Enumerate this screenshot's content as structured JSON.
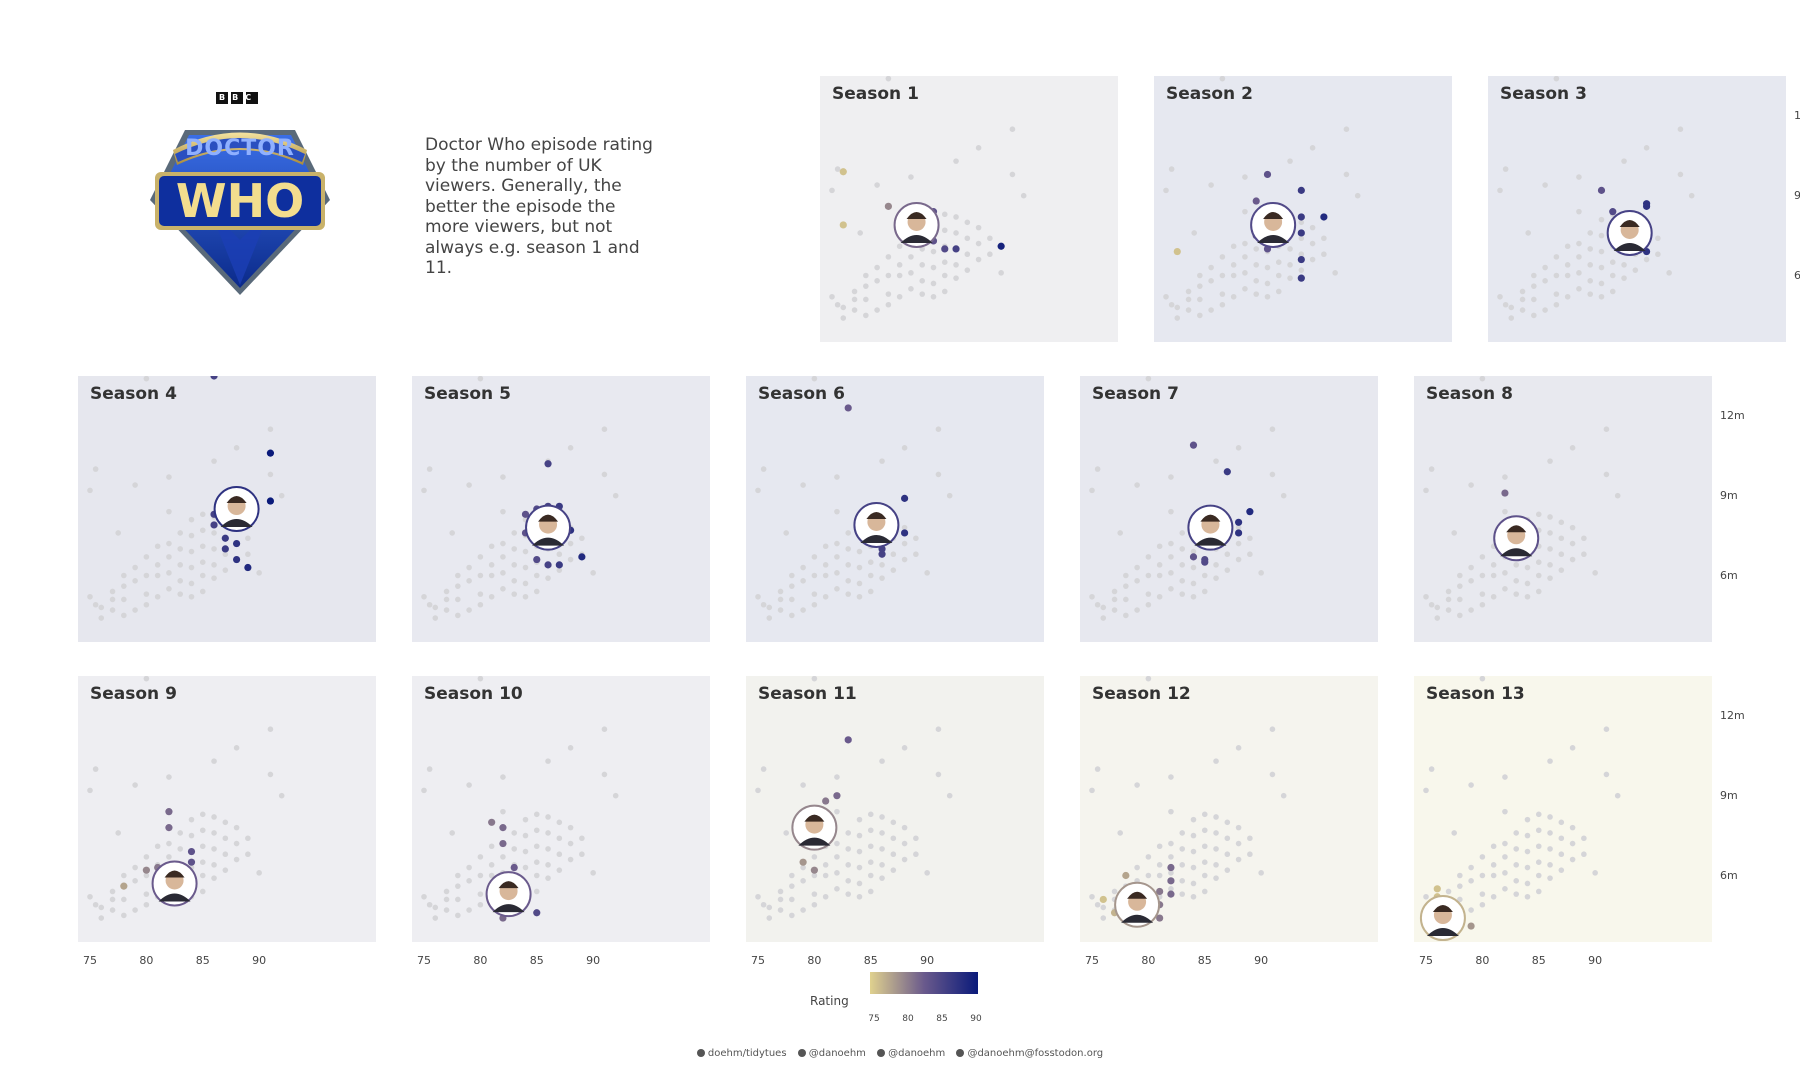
{
  "logo": {
    "bbc_text": "BBC",
    "line1": "DOCTOR",
    "line2": "WHO"
  },
  "subtitle": "Doctor Who episode rating by the number of UK viewers. Generally, the better the episode the more viewers, but not always e.g. season 1 and 11.",
  "legend": {
    "title": "Rating",
    "ticks": [
      "75",
      "80",
      "85",
      "90"
    ],
    "color_low": "#e0d18e",
    "color_mid": "#6a5a8c",
    "color_high": "#0a1a7a"
  },
  "footer": {
    "items": [
      "doehm/tidytues",
      "@danoehm",
      "@danoehm",
      "@danoehm@fosstodon.org"
    ],
    "icons": [
      "github-icon",
      "twitter-icon",
      "threads-icon",
      "mastodon-icon"
    ]
  },
  "chart_data": {
    "type": "scatter",
    "xlabel": "",
    "ylabel": "",
    "xlim": [
      74.5,
      92.5
    ],
    "ylim": [
      3.5,
      13.5
    ],
    "x_ticks": [
      "75",
      "80",
      "85",
      "90"
    ],
    "y_ticks": [
      "6m",
      "9m",
      "12m"
    ],
    "background_points": [
      [
        75,
        5.2
      ],
      [
        75.5,
        4.9
      ],
      [
        76,
        4.4
      ],
      [
        76,
        4.8
      ],
      [
        77,
        5.4
      ],
      [
        77,
        4.7
      ],
      [
        77,
        5.1
      ],
      [
        78,
        6.0
      ],
      [
        78,
        5.6
      ],
      [
        78,
        5.1
      ],
      [
        78,
        4.5
      ],
      [
        79,
        5.8
      ],
      [
        79,
        6.3
      ],
      [
        79,
        4.7
      ],
      [
        80,
        6.7
      ],
      [
        80,
        6.0
      ],
      [
        80,
        5.3
      ],
      [
        80,
        4.9
      ],
      [
        81,
        6.4
      ],
      [
        81,
        7.1
      ],
      [
        81,
        6.0
      ],
      [
        81,
        5.2
      ],
      [
        82,
        7.2
      ],
      [
        82,
        6.7
      ],
      [
        82,
        6.1
      ],
      [
        82,
        5.5
      ],
      [
        82,
        8.4
      ],
      [
        83,
        7.6
      ],
      [
        83,
        7.0
      ],
      [
        83,
        6.4
      ],
      [
        83,
        5.8
      ],
      [
        83,
        5.3
      ],
      [
        84,
        8.1
      ],
      [
        84,
        7.5
      ],
      [
        84,
        6.9
      ],
      [
        84,
        6.3
      ],
      [
        84,
        5.7
      ],
      [
        84,
        5.2
      ],
      [
        85,
        8.3
      ],
      [
        85,
        7.7
      ],
      [
        85,
        7.1
      ],
      [
        85,
        6.5
      ],
      [
        85,
        6.0
      ],
      [
        85,
        5.4
      ],
      [
        86,
        8.2
      ],
      [
        86,
        7.6
      ],
      [
        86,
        7.0
      ],
      [
        86,
        6.4
      ],
      [
        86,
        5.9
      ],
      [
        87,
        8.0
      ],
      [
        87,
        7.4
      ],
      [
        87,
        6.8
      ],
      [
        87,
        6.2
      ],
      [
        88,
        7.8
      ],
      [
        88,
        7.2
      ],
      [
        88,
        6.6
      ],
      [
        89,
        7.4
      ],
      [
        89,
        6.8
      ],
      [
        90,
        6.1
      ],
      [
        80,
        13.4
      ],
      [
        75.5,
        10.0
      ],
      [
        75,
        9.2
      ],
      [
        79,
        9.4
      ],
      [
        82,
        9.7
      ],
      [
        86,
        10.3
      ],
      [
        88,
        10.8
      ],
      [
        91,
        9.8
      ],
      [
        92,
        9.0
      ],
      [
        91,
        11.5
      ],
      [
        77.5,
        7.6
      ]
    ],
    "series": [
      {
        "name": "Season 1",
        "doctor_x": 82.5,
        "doctor_y": 7.9,
        "points": [
          [
            76,
            9.9
          ],
          [
            76,
            7.9
          ],
          [
            80,
            8.6
          ],
          [
            84,
            8.4
          ],
          [
            84,
            7.3
          ],
          [
            85,
            7.0
          ],
          [
            86,
            7.0
          ],
          [
            90,
            7.1
          ],
          [
            81,
            8.0
          ],
          [
            82,
            7.6
          ]
        ]
      },
      {
        "name": "Season 2",
        "doctor_x": 84.5,
        "doctor_y": 7.9,
        "points": [
          [
            76,
            6.9
          ],
          [
            83,
            8.8
          ],
          [
            84,
            9.8
          ],
          [
            87,
            9.2
          ],
          [
            87,
            8.2
          ],
          [
            87,
            7.6
          ],
          [
            87,
            6.6
          ],
          [
            87,
            5.9
          ],
          [
            89,
            8.2
          ],
          [
            83,
            7.5
          ],
          [
            84,
            7.0
          ],
          [
            85,
            8.6
          ]
        ]
      },
      {
        "name": "Season 3",
        "doctor_x": 86.5,
        "doctor_y": 7.6,
        "points": [
          [
            84,
            9.2
          ],
          [
            85,
            8.4
          ],
          [
            88,
            8.6
          ],
          [
            88,
            8.7
          ],
          [
            86,
            7.1
          ],
          [
            87,
            6.9
          ],
          [
            88,
            6.9
          ],
          [
            85,
            7.4
          ]
        ]
      },
      {
        "name": "Season 4",
        "doctor_x": 88,
        "doctor_y": 8.5,
        "points": [
          [
            86,
            13.5
          ],
          [
            91,
            10.6
          ],
          [
            91,
            8.8
          ],
          [
            87,
            8.9
          ],
          [
            88,
            8.9
          ],
          [
            89,
            7.9
          ],
          [
            86,
            8.3
          ],
          [
            86,
            7.9
          ],
          [
            87,
            7.4
          ],
          [
            87,
            7.0
          ],
          [
            88,
            7.2
          ],
          [
            88,
            6.6
          ],
          [
            89,
            6.3
          ]
        ]
      },
      {
        "name": "Season 5",
        "doctor_x": 86,
        "doctor_y": 7.8,
        "points": [
          [
            86,
            10.2
          ],
          [
            85,
            8.5
          ],
          [
            86,
            8.6
          ],
          [
            87,
            8.6
          ],
          [
            84,
            8.3
          ],
          [
            84,
            7.6
          ],
          [
            88,
            7.7
          ],
          [
            89,
            6.7
          ],
          [
            86,
            6.4
          ],
          [
            87,
            6.4
          ],
          [
            85,
            6.6
          ]
        ]
      },
      {
        "name": "Season 6",
        "doctor_x": 85.5,
        "doctor_y": 7.9,
        "points": [
          [
            83,
            12.3
          ],
          [
            86,
            7.4
          ],
          [
            86,
            7.0
          ],
          [
            86,
            6.8
          ],
          [
            88,
            8.9
          ],
          [
            88,
            7.6
          ],
          [
            87,
            7.8
          ]
        ]
      },
      {
        "name": "Season 7",
        "doctor_x": 85.5,
        "doctor_y": 7.8,
        "points": [
          [
            84,
            10.9
          ],
          [
            87,
            9.9
          ],
          [
            84,
            7.5
          ],
          [
            85,
            6.6
          ],
          [
            85,
            6.5
          ],
          [
            84,
            6.7
          ],
          [
            88,
            8.0
          ],
          [
            88,
            7.6
          ],
          [
            89,
            8.4
          ],
          [
            86,
            7.2
          ]
        ]
      },
      {
        "name": "Season 8",
        "doctor_x": 83,
        "doctor_y": 7.4,
        "points": [
          [
            82,
            9.1
          ],
          [
            82,
            7.4
          ],
          [
            82,
            7.1
          ],
          [
            84,
            7.5
          ],
          [
            84,
            7.2
          ],
          [
            84,
            6.8
          ]
        ]
      },
      {
        "name": "Season 9",
        "doctor_x": 82.5,
        "doctor_y": 5.7,
        "points": [
          [
            78,
            5.6
          ],
          [
            80,
            6.2
          ],
          [
            81,
            6.3
          ],
          [
            82,
            8.4
          ],
          [
            82,
            7.8
          ],
          [
            84,
            6.9
          ],
          [
            84,
            6.5
          ],
          [
            84,
            5.8
          ],
          [
            83,
            6.1
          ]
        ]
      },
      {
        "name": "Season 10",
        "doctor_x": 82.5,
        "doctor_y": 5.3,
        "points": [
          [
            81,
            8.0
          ],
          [
            82,
            7.8
          ],
          [
            82,
            7.2
          ],
          [
            83,
            5.4
          ],
          [
            82,
            4.4
          ],
          [
            83,
            4.7
          ],
          [
            85,
            4.6
          ],
          [
            83,
            6.3
          ]
        ]
      },
      {
        "name": "Season 11",
        "doctor_x": 80,
        "doctor_y": 7.8,
        "points": [
          [
            83,
            11.1
          ],
          [
            82,
            9.0
          ],
          [
            81,
            8.8
          ],
          [
            79,
            7.6
          ],
          [
            80,
            7.1
          ],
          [
            79,
            6.5
          ],
          [
            80,
            6.2
          ]
        ]
      },
      {
        "name": "Season 12",
        "doctor_x": 79,
        "doctor_y": 4.9,
        "points": [
          [
            76,
            5.1
          ],
          [
            77,
            4.6
          ],
          [
            78,
            4.7
          ],
          [
            78,
            6.0
          ],
          [
            79,
            5.4
          ],
          [
            80,
            5.1
          ],
          [
            81,
            5.4
          ],
          [
            81,
            4.4
          ],
          [
            81,
            4.9
          ],
          [
            82,
            5.8
          ],
          [
            82,
            5.3
          ],
          [
            82,
            6.3
          ]
        ]
      },
      {
        "name": "Season 13",
        "doctor_x": 76.5,
        "doctor_y": 4.4,
        "points": [
          [
            75,
            4.2
          ],
          [
            76,
            5.2
          ],
          [
            76,
            5.5
          ],
          [
            77,
            4.5
          ],
          [
            78,
            4.4
          ],
          [
            79,
            4.1
          ]
        ]
      }
    ],
    "colors": {
      "point_bg": "#d5d5d8"
    }
  },
  "panels": [
    {
      "title": "Season 1",
      "bg": "#efeff1",
      "rating": 82
    },
    {
      "title": "Season 2",
      "bg": "#e6e8f0",
      "rating": 85
    },
    {
      "title": "Season 3",
      "bg": "#e6e8f0",
      "rating": 86
    },
    {
      "title": "Season 4",
      "bg": "#e6e7ee",
      "rating": 88
    },
    {
      "title": "Season 5",
      "bg": "#e8e9f0",
      "rating": 86
    },
    {
      "title": "Season 6",
      "bg": "#e6e8f0",
      "rating": 86
    },
    {
      "title": "Season 7",
      "bg": "#e7e8ef",
      "rating": 86
    },
    {
      "title": "Season 8",
      "bg": "#e8e9ef",
      "rating": 84
    },
    {
      "title": "Season 9",
      "bg": "#eeeef2",
      "rating": 83
    },
    {
      "title": "Season 10",
      "bg": "#eeeef2",
      "rating": 83
    },
    {
      "title": "Season 11",
      "bg": "#f2f2ee",
      "rating": 80
    },
    {
      "title": "Season 12",
      "bg": "#f5f4ee",
      "rating": 79
    },
    {
      "title": "Season 13",
      "bg": "#f8f7ec",
      "rating": 77
    }
  ]
}
